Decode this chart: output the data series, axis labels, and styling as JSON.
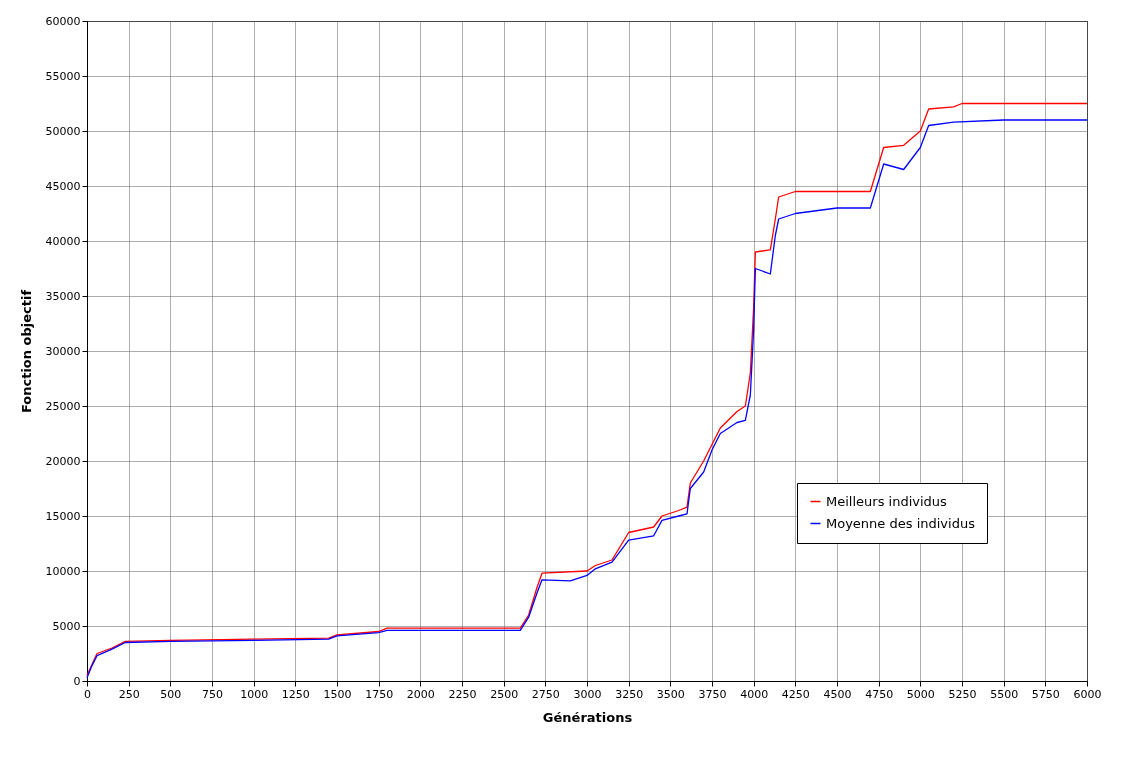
{
  "chart_data": {
    "type": "line",
    "xlabel": "Générations",
    "ylabel": "Fonction objectif",
    "xlim": [
      0,
      6000
    ],
    "xticks": [
      0,
      250,
      500,
      750,
      1000,
      1250,
      1500,
      1750,
      2000,
      2250,
      2500,
      2750,
      3000,
      3250,
      3500,
      3750,
      4000,
      4250,
      4500,
      4750,
      5000,
      5250,
      5500,
      5750,
      6000
    ],
    "ylim": [
      0,
      60000
    ],
    "yticks": [
      0,
      5000,
      10000,
      15000,
      20000,
      25000,
      30000,
      35000,
      40000,
      45000,
      50000,
      55000,
      60000
    ],
    "grid": true,
    "legend": "right",
    "line_style": "solid",
    "series": [
      {
        "name": "Meilleurs individus",
        "color": "#ff0000",
        "x": [
          0,
          30,
          60,
          150,
          230,
          500,
          1000,
          1450,
          1500,
          1750,
          1800,
          2600,
          2650,
          2700,
          2730,
          3000,
          3050,
          3150,
          3250,
          3400,
          3450,
          3550,
          3600,
          3620,
          3700,
          3750,
          3800,
          3900,
          3950,
          3980,
          4000,
          4010,
          4100,
          4130,
          4150,
          4250,
          4700,
          4730,
          4780,
          4900,
          5000,
          5050,
          5200,
          5250,
          6000
        ],
        "values": [
          500,
          1500,
          2500,
          3000,
          3600,
          3700,
          3800,
          3900,
          4200,
          4500,
          4800,
          4800,
          6000,
          8500,
          9800,
          10000,
          10500,
          11000,
          13500,
          14000,
          15000,
          15500,
          15800,
          18000,
          20000,
          21500,
          23000,
          24500,
          25000,
          28000,
          34000,
          39000,
          39200,
          42000,
          44000,
          44500,
          44500,
          46000,
          48500,
          48700,
          50000,
          52000,
          52200,
          52500,
          52500
        ]
      },
      {
        "name": "Moyenne des individus",
        "color": "#0000ff",
        "x": [
          0,
          30,
          60,
          150,
          230,
          500,
          1000,
          1450,
          1500,
          1750,
          1800,
          2600,
          2650,
          2700,
          2730,
          2900,
          3000,
          3050,
          3150,
          3250,
          3400,
          3450,
          3550,
          3600,
          3620,
          3700,
          3750,
          3800,
          3900,
          3950,
          3980,
          4000,
          4010,
          4100,
          4130,
          4150,
          4250,
          4500,
          4700,
          4730,
          4780,
          4900,
          5000,
          5050,
          5200,
          5500,
          6000
        ],
        "values": [
          300,
          1400,
          2300,
          2900,
          3500,
          3600,
          3700,
          3800,
          4100,
          4400,
          4600,
          4600,
          5800,
          8000,
          9200,
          9100,
          9600,
          10200,
          10800,
          12800,
          13200,
          14600,
          15000,
          15200,
          17500,
          19000,
          21000,
          22500,
          23500,
          23700,
          26000,
          32000,
          37500,
          37000,
          40500,
          42000,
          42500,
          43000,
          43000,
          44500,
          47000,
          46500,
          48500,
          50500,
          50800,
          51000,
          51000
        ]
      }
    ]
  }
}
